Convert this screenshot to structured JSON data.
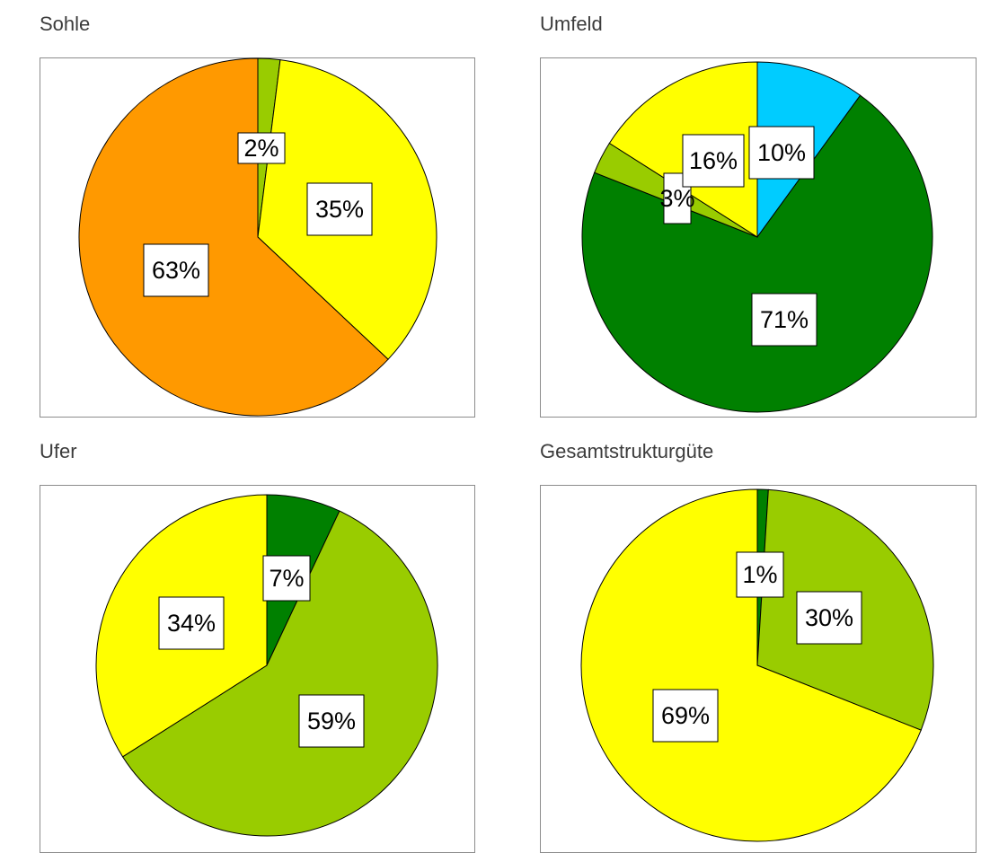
{
  "charts": [
    {
      "title": "Sohle",
      "chart_data": {
        "type": "pie",
        "slices": [
          {
            "value": 2,
            "label": "2%",
            "color": "#99cc00"
          },
          {
            "value": 35,
            "label": "35%",
            "color": "#ffff00"
          },
          {
            "value": 63,
            "label": "63%",
            "color": "#ff9900"
          }
        ]
      }
    },
    {
      "title": "Umfeld",
      "chart_data": {
        "type": "pie",
        "slices": [
          {
            "value": 10,
            "label": "10%",
            "color": "#00ccff"
          },
          {
            "value": 71,
            "label": "71%",
            "color": "#008000"
          },
          {
            "value": 3,
            "label": "3%",
            "color": "#99cc00"
          },
          {
            "value": 16,
            "label": "16%",
            "color": "#ffff00"
          }
        ]
      }
    },
    {
      "title": "Ufer",
      "chart_data": {
        "type": "pie",
        "slices": [
          {
            "value": 7,
            "label": "7%",
            "color": "#008000"
          },
          {
            "value": 59,
            "label": "59%",
            "color": "#99cc00"
          },
          {
            "value": 34,
            "label": "34%",
            "color": "#ffff00"
          }
        ]
      }
    },
    {
      "title": "Gesamtstrukturgüte",
      "chart_data": {
        "type": "pie",
        "slices": [
          {
            "value": 1,
            "label": "1%",
            "color": "#008000"
          },
          {
            "value": 30,
            "label": "30%",
            "color": "#99cc00"
          },
          {
            "value": 69,
            "label": "69%",
            "color": "#ffff00"
          }
        ]
      }
    }
  ]
}
